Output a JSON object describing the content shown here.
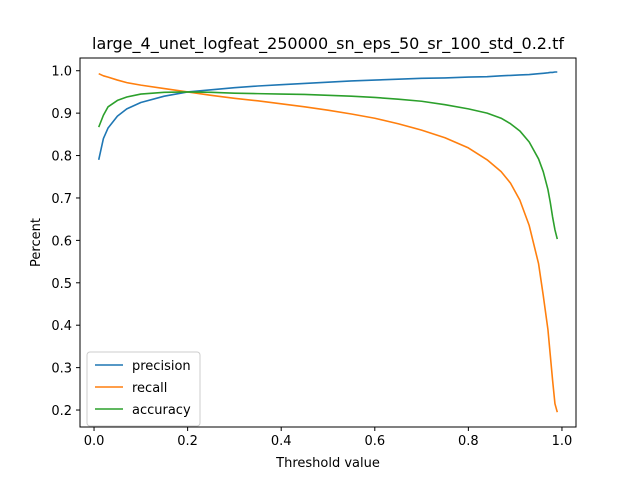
{
  "chart_data": {
    "type": "line",
    "title": "large_4_unet_logfeat_250000_sn_eps_50_sr_100_std_0.2.tf",
    "xlabel": "Threshold value",
    "ylabel": "Percent",
    "xlim": [
      -0.03,
      1.03
    ],
    "ylim": [
      0.16,
      1.03
    ],
    "xticks": [
      0.0,
      0.2,
      0.4,
      0.6,
      0.8,
      1.0
    ],
    "xtick_labels": [
      "0.0",
      "0.2",
      "0.4",
      "0.6",
      "0.8",
      "1.0"
    ],
    "yticks": [
      0.2,
      0.3,
      0.4,
      0.5,
      0.6,
      0.7,
      0.8,
      0.9,
      1.0
    ],
    "ytick_labels": [
      "0.2",
      "0.3",
      "0.4",
      "0.5",
      "0.6",
      "0.7",
      "0.8",
      "0.9",
      "1.0"
    ],
    "grid": false,
    "legend_position": "lower-left",
    "x": [
      0.01,
      0.02,
      0.03,
      0.05,
      0.07,
      0.1,
      0.15,
      0.2,
      0.25,
      0.3,
      0.35,
      0.4,
      0.45,
      0.5,
      0.55,
      0.6,
      0.65,
      0.7,
      0.75,
      0.8,
      0.84,
      0.87,
      0.89,
      0.91,
      0.93,
      0.95,
      0.96,
      0.97,
      0.975,
      0.98,
      0.985,
      0.99
    ],
    "series": [
      {
        "name": "precision",
        "color": "#1f77b4",
        "values": [
          0.79,
          0.84,
          0.865,
          0.893,
          0.91,
          0.925,
          0.94,
          0.95,
          0.955,
          0.96,
          0.964,
          0.967,
          0.97,
          0.973,
          0.976,
          0.978,
          0.98,
          0.982,
          0.983,
          0.985,
          0.986,
          0.988,
          0.989,
          0.99,
          0.991,
          0.993,
          0.994,
          0.995,
          0.996,
          0.996,
          0.997,
          0.997
        ]
      },
      {
        "name": "recall",
        "color": "#ff7f0e",
        "values": [
          0.993,
          0.988,
          0.985,
          0.978,
          0.972,
          0.966,
          0.958,
          0.95,
          0.942,
          0.935,
          0.929,
          0.922,
          0.915,
          0.907,
          0.898,
          0.888,
          0.875,
          0.86,
          0.842,
          0.818,
          0.79,
          0.762,
          0.735,
          0.695,
          0.635,
          0.545,
          0.47,
          0.39,
          0.33,
          0.27,
          0.215,
          0.195
        ]
      },
      {
        "name": "accuracy",
        "color": "#2ca02c",
        "values": [
          0.867,
          0.895,
          0.915,
          0.93,
          0.938,
          0.945,
          0.949,
          0.95,
          0.949,
          0.947,
          0.946,
          0.945,
          0.944,
          0.942,
          0.94,
          0.937,
          0.933,
          0.928,
          0.92,
          0.91,
          0.9,
          0.888,
          0.875,
          0.858,
          0.832,
          0.792,
          0.762,
          0.72,
          0.69,
          0.655,
          0.625,
          0.603
        ]
      }
    ]
  }
}
